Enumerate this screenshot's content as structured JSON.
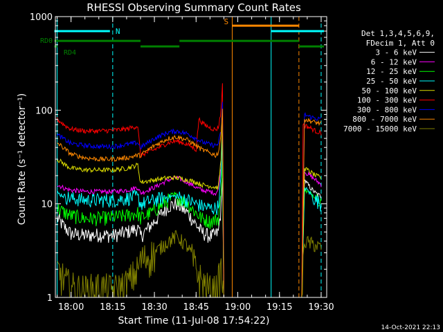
{
  "chart_data": {
    "type": "line",
    "title": "RHESSI Observing Summary Count Rates",
    "xlabel": "Start Time (11-Jul-08 17:54:22)",
    "ylabel": "Count Rate (s⁻¹ detector⁻¹)",
    "y_scale": "log",
    "ylim": [
      1,
      1000
    ],
    "xlim": [
      "17:54:22",
      "19:32:00"
    ],
    "x_ticks": [
      "18:00",
      "18:15",
      "18:30",
      "18:45",
      "19:00",
      "19:15",
      "19:30"
    ],
    "y_ticks": [
      "1",
      "10",
      "100",
      "1000"
    ],
    "footer_date": "14-Oct-2021 22:13",
    "legend": {
      "header": [
        "Det 1,3,4,5,6,9,",
        "FDecim 1, Att 0"
      ],
      "placement": "right"
    },
    "annotations": {
      "N": {
        "label": "N",
        "color": "#00ffff",
        "time": "18:15"
      },
      "S": {
        "label": "S",
        "color": "#ff8800",
        "time": "18:58"
      },
      "RD0": {
        "label": "RD0",
        "color": "#008000"
      },
      "RD4": {
        "label": "RD4",
        "color": "#008000"
      }
    },
    "vertical_lines": [
      {
        "time": "17:55",
        "color": "#00ffff",
        "style": "solid"
      },
      {
        "time": "18:15",
        "color": "#00ffff",
        "style": "dashed"
      },
      {
        "time": "18:58",
        "color": "#ff8800",
        "style": "solid"
      },
      {
        "time": "19:12",
        "color": "#00ffff",
        "style": "solid"
      },
      {
        "time": "19:22",
        "color": "#ff8800",
        "style": "dashed"
      },
      {
        "time": "19:30",
        "color": "#00ffff",
        "style": "dashed"
      }
    ],
    "bars": [
      {
        "name": "N",
        "color": "#00ffff",
        "y": 700,
        "segments": [
          [
            "17:54",
            "18:14"
          ],
          [
            "19:12",
            "19:31"
          ]
        ]
      },
      {
        "name": "S",
        "color": "#ff8800",
        "y": 800,
        "segments": [
          [
            "18:58",
            "19:22"
          ]
        ]
      },
      {
        "name": "RD0",
        "color": "#008000",
        "y": 550,
        "segments": [
          [
            "17:54",
            "18:25"
          ],
          [
            "18:39",
            "19:22"
          ]
        ]
      },
      {
        "name": "RD4",
        "color": "#008000",
        "y": 480,
        "segments": [
          [
            "17:54",
            "17:55"
          ],
          [
            "18:25",
            "18:39"
          ],
          [
            "19:22",
            "19:31"
          ]
        ]
      }
    ],
    "series": [
      {
        "name": "3 - 6 keV",
        "color": "#ffffff",
        "points": [
          [
            "17:55",
            7
          ],
          [
            "17:58",
            5.5
          ],
          [
            "18:00",
            4.8
          ],
          [
            "18:05",
            4.6
          ],
          [
            "18:10",
            4.7
          ],
          [
            "18:15",
            4.6
          ],
          [
            "18:20",
            5
          ],
          [
            "18:24",
            5.5
          ],
          [
            "18:25",
            4.5
          ],
          [
            "18:30",
            6.5
          ],
          [
            "18:35",
            9.5
          ],
          [
            "18:38",
            10
          ],
          [
            "18:42",
            8
          ],
          [
            "18:45",
            6
          ],
          [
            "18:47",
            5
          ],
          [
            "18:50",
            4.5
          ],
          [
            "18:52",
            4.7
          ],
          [
            "18:53",
            5
          ],
          [
            "18:54",
            9
          ],
          [
            "18:54.5",
            20
          ],
          [
            "18:55",
            1
          ],
          [
            "19:23",
            1
          ],
          [
            "19:24",
            18
          ],
          [
            "19:26",
            15
          ],
          [
            "19:28",
            13
          ],
          [
            "19:30",
            12
          ]
        ]
      },
      {
        "name": "6 - 12 keV",
        "color": "#ff00ff",
        "points": [
          [
            "17:55",
            16
          ],
          [
            "17:58",
            14.5
          ],
          [
            "18:00",
            14
          ],
          [
            "18:05",
            13.5
          ],
          [
            "18:10",
            13.5
          ],
          [
            "18:15",
            13.5
          ],
          [
            "18:20",
            14
          ],
          [
            "18:24",
            15
          ],
          [
            "18:25",
            13
          ],
          [
            "18:30",
            15
          ],
          [
            "18:35",
            18
          ],
          [
            "18:38",
            19
          ],
          [
            "18:42",
            17
          ],
          [
            "18:45",
            15
          ],
          [
            "18:47",
            14
          ],
          [
            "18:50",
            13.5
          ],
          [
            "18:52",
            13
          ],
          [
            "18:53",
            14
          ],
          [
            "18:54",
            25
          ],
          [
            "18:54.5",
            60
          ],
          [
            "18:55",
            1
          ],
          [
            "19:23",
            1
          ],
          [
            "19:24",
            22
          ],
          [
            "19:26",
            20
          ],
          [
            "19:28",
            18
          ],
          [
            "19:30",
            16
          ]
        ]
      },
      {
        "name": "12 - 25 keV",
        "color": "#00ff00",
        "points": [
          [
            "17:55",
            9
          ],
          [
            "17:58",
            8
          ],
          [
            "18:00",
            7.5
          ],
          [
            "18:05",
            7
          ],
          [
            "18:10",
            7
          ],
          [
            "18:15",
            7.2
          ],
          [
            "18:20",
            7.5
          ],
          [
            "18:24",
            8
          ],
          [
            "18:25",
            7
          ],
          [
            "18:30",
            8.5
          ],
          [
            "18:35",
            11
          ],
          [
            "18:38",
            12
          ],
          [
            "18:42",
            10
          ],
          [
            "18:45",
            8
          ],
          [
            "18:47",
            7
          ],
          [
            "18:50",
            6.5
          ],
          [
            "18:52",
            6.8
          ],
          [
            "18:53",
            7
          ],
          [
            "18:54",
            12
          ],
          [
            "18:54.5",
            30
          ],
          [
            "18:55",
            1
          ],
          [
            "19:23",
            1
          ],
          [
            "19:24",
            14
          ],
          [
            "19:26",
            13
          ],
          [
            "19:28",
            12
          ],
          [
            "19:30",
            11
          ]
        ]
      },
      {
        "name": "25 - 50 keV",
        "color": "#00ffff",
        "points": [
          [
            "17:55",
            13
          ],
          [
            "17:58",
            12
          ],
          [
            "18:00",
            11.5
          ],
          [
            "18:05",
            11
          ],
          [
            "18:10",
            11
          ],
          [
            "18:15",
            11
          ],
          [
            "18:20",
            11.5
          ],
          [
            "18:24",
            12
          ],
          [
            "18:25",
            10
          ],
          [
            "18:30",
            11
          ],
          [
            "18:35",
            12
          ],
          [
            "18:38",
            12
          ],
          [
            "18:42",
            11
          ],
          [
            "18:45",
            10
          ],
          [
            "18:47",
            9.5
          ],
          [
            "18:50",
            9
          ],
          [
            "18:52",
            9
          ],
          [
            "18:53",
            9.5
          ],
          [
            "18:54",
            20
          ],
          [
            "18:54.5",
            50
          ],
          [
            "18:55",
            1
          ],
          [
            "19:23",
            1
          ],
          [
            "19:24",
            15
          ],
          [
            "19:26",
            13
          ],
          [
            "19:28",
            11
          ],
          [
            "19:30",
            10
          ]
        ]
      },
      {
        "name": "50 - 100 keV",
        "color": "#dddd00",
        "points": [
          [
            "17:55",
            30
          ],
          [
            "17:58",
            26
          ],
          [
            "18:00",
            24
          ],
          [
            "18:05",
            23
          ],
          [
            "18:10",
            23
          ],
          [
            "18:15",
            23
          ],
          [
            "18:20",
            24
          ],
          [
            "18:24",
            26
          ],
          [
            "18:25",
            17
          ],
          [
            "18:30",
            18
          ],
          [
            "18:35",
            19
          ],
          [
            "18:38",
            19
          ],
          [
            "18:42",
            18
          ],
          [
            "18:45",
            17
          ],
          [
            "18:47",
            16
          ],
          [
            "18:50",
            15.5
          ],
          [
            "18:52",
            15
          ],
          [
            "18:53",
            15
          ],
          [
            "18:54",
            30
          ],
          [
            "18:54.5",
            80
          ],
          [
            "18:55",
            1
          ],
          [
            "19:23",
            1
          ],
          [
            "19:24",
            24
          ],
          [
            "19:26",
            22
          ],
          [
            "19:28",
            20
          ],
          [
            "19:30",
            19
          ]
        ]
      },
      {
        "name": "100 - 300 keV",
        "color": "#ff0000",
        "points": [
          [
            "17:55",
            80
          ],
          [
            "17:58",
            68
          ],
          [
            "18:00",
            63
          ],
          [
            "18:05",
            60
          ],
          [
            "18:10",
            60
          ],
          [
            "18:15",
            61
          ],
          [
            "18:20",
            63
          ],
          [
            "18:24",
            68
          ],
          [
            "18:25",
            33
          ],
          [
            "18:30",
            38
          ],
          [
            "18:35",
            45
          ],
          [
            "18:38",
            47
          ],
          [
            "18:42",
            43
          ],
          [
            "18:45",
            38
          ],
          [
            "18:46",
            80
          ],
          [
            "18:48",
            70
          ],
          [
            "18:50",
            65
          ],
          [
            "18:52",
            62
          ],
          [
            "18:53",
            65
          ],
          [
            "18:54",
            100
          ],
          [
            "18:54.5",
            200
          ],
          [
            "18:55",
            1
          ],
          [
            "19:23",
            1
          ],
          [
            "19:23.5",
            70
          ],
          [
            "19:26",
            65
          ],
          [
            "19:28",
            60
          ],
          [
            "19:30",
            57
          ]
        ]
      },
      {
        "name": "300 - 800 keV",
        "color": "#0000ff",
        "points": [
          [
            "17:55",
            55
          ],
          [
            "17:58",
            48
          ],
          [
            "18:00",
            44
          ],
          [
            "18:05",
            42
          ],
          [
            "18:10",
            41
          ],
          [
            "18:15",
            41
          ],
          [
            "18:20",
            43
          ],
          [
            "18:24",
            45
          ],
          [
            "18:25",
            40
          ],
          [
            "18:30",
            50
          ],
          [
            "18:35",
            58
          ],
          [
            "18:38",
            60
          ],
          [
            "18:42",
            56
          ],
          [
            "18:45",
            50
          ],
          [
            "18:47",
            46
          ],
          [
            "18:50",
            43
          ],
          [
            "18:52",
            42
          ],
          [
            "18:53",
            44
          ],
          [
            "18:54",
            60
          ],
          [
            "18:54.5",
            120
          ],
          [
            "18:55",
            1
          ],
          [
            "19:23",
            1
          ],
          [
            "19:24",
            90
          ],
          [
            "19:26",
            85
          ],
          [
            "19:28",
            82
          ],
          [
            "19:30",
            80
          ]
        ]
      },
      {
        "name": "800 - 7000 keV",
        "color": "#ff8800",
        "points": [
          [
            "17:55",
            45
          ],
          [
            "17:58",
            38
          ],
          [
            "18:00",
            34
          ],
          [
            "18:05",
            31
          ],
          [
            "18:10",
            30
          ],
          [
            "18:15",
            30
          ],
          [
            "18:20",
            31
          ],
          [
            "18:24",
            33
          ],
          [
            "18:25",
            33
          ],
          [
            "18:30",
            42
          ],
          [
            "18:35",
            50
          ],
          [
            "18:38",
            52
          ],
          [
            "18:42",
            48
          ],
          [
            "18:45",
            42
          ],
          [
            "18:47",
            38
          ],
          [
            "18:50",
            35
          ],
          [
            "18:52",
            33
          ],
          [
            "18:53",
            35
          ],
          [
            "18:54",
            55
          ],
          [
            "18:54.5",
            110
          ],
          [
            "18:55",
            1
          ],
          [
            "19:23",
            1
          ],
          [
            "19:24",
            80
          ],
          [
            "19:26",
            77
          ],
          [
            "19:28",
            74
          ],
          [
            "19:30",
            72
          ]
        ]
      },
      {
        "name": "7000 - 15000 keV",
        "color": "#808000",
        "points": [
          [
            "17:55",
            2
          ],
          [
            "17:58",
            1.5
          ],
          [
            "18:00",
            1.3
          ],
          [
            "18:05",
            1.2
          ],
          [
            "18:10",
            1.3
          ],
          [
            "18:15",
            1.2
          ],
          [
            "18:20",
            1.4
          ],
          [
            "18:24",
            2
          ],
          [
            "18:25",
            2.5
          ],
          [
            "18:30",
            3
          ],
          [
            "18:35",
            4
          ],
          [
            "18:38",
            4.5
          ],
          [
            "18:42",
            3.5
          ],
          [
            "18:45",
            2
          ],
          [
            "18:47",
            1.5
          ],
          [
            "18:50",
            1.2
          ],
          [
            "18:52",
            1.2
          ],
          [
            "18:53",
            1.5
          ],
          [
            "18:54",
            2
          ],
          [
            "18:55",
            1
          ],
          [
            "19:23",
            1
          ],
          [
            "19:24",
            4
          ],
          [
            "19:26",
            3.8
          ],
          [
            "19:28",
            3.6
          ],
          [
            "19:30",
            3.4
          ]
        ]
      }
    ]
  }
}
